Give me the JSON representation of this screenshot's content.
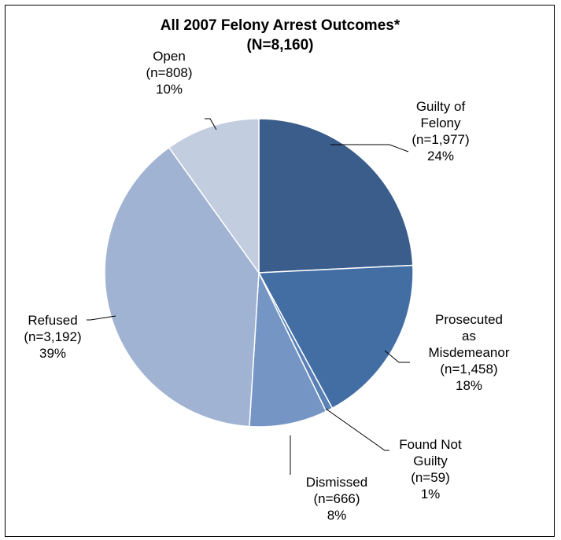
{
  "chart_data": {
    "type": "pie",
    "title": "All 2007 Felony Arrest Outcomes*",
    "subtitle": "(N=8,160)",
    "slices": [
      {
        "label": [
          "Guilty of",
          "Felony"
        ],
        "count_text": "(n=1,977)",
        "value": 1977,
        "percent_text": "24%",
        "color": "#3a5d8c"
      },
      {
        "label": [
          "Prosecuted",
          "as",
          "Misdemeanor"
        ],
        "count_text": "(n=1,458)",
        "value": 1458,
        "percent_text": "18%",
        "color": "#426ea4"
      },
      {
        "label": [
          "Found Not",
          "Guilty"
        ],
        "count_text": "(n=59)",
        "value": 59,
        "percent_text": "1%",
        "color": "#5a82b7"
      },
      {
        "label": [
          "Dismissed"
        ],
        "count_text": "(n=666)",
        "value": 666,
        "percent_text": "8%",
        "color": "#7595c4"
      },
      {
        "label": [
          "Refused"
        ],
        "count_text": "(n=3,192)",
        "value": 3192,
        "percent_text": "39%",
        "color": "#a1b3d2"
      },
      {
        "label": [
          "Open"
        ],
        "count_text": "(n=808)",
        "value": 808,
        "percent_text": "10%",
        "color": "#c3cde0"
      }
    ],
    "start_angle_deg": 0,
    "direction": "clockwise"
  }
}
